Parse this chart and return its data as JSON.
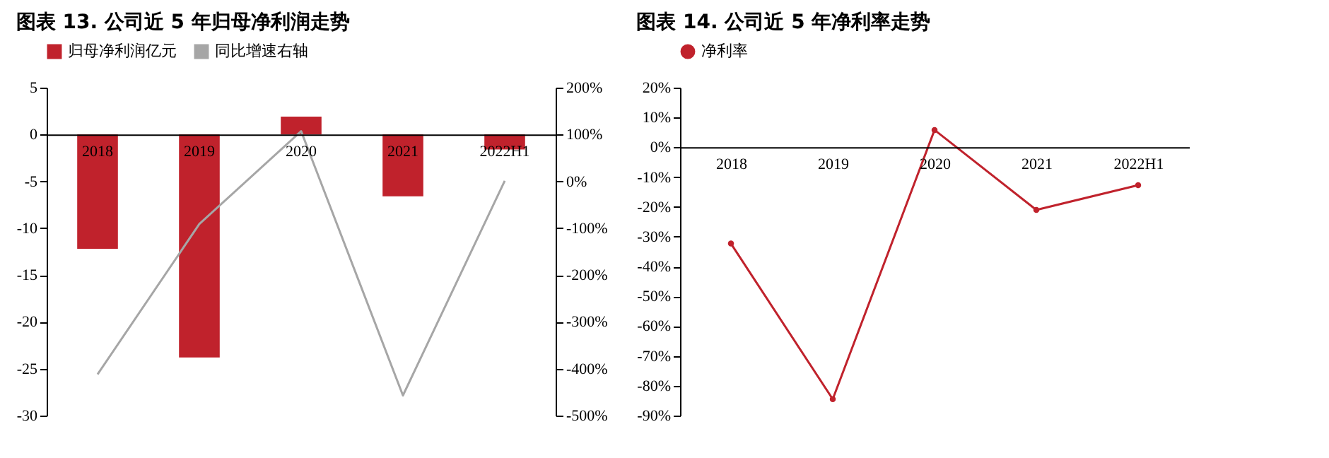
{
  "chart_data": [
    {
      "type": "bar",
      "title": "图表 13. 公司近 5 年归母净利润走势",
      "categories": [
        "2018",
        "2019",
        "2020",
        "2021",
        "2022H1"
      ],
      "series": [
        {
          "name": "归母净利润亿元",
          "color": "#c0222c",
          "values": [
            -12.2,
            -23.8,
            1.9,
            -6.6,
            -1.6
          ]
        },
        {
          "name": "同比增速右轴",
          "type": "line",
          "axis": "y2",
          "color": "#a6a6a6",
          "values": [
            -412,
            -91,
            107,
            -457,
            1
          ]
        }
      ],
      "ylim": [
        -30,
        5
      ],
      "yticks": [
        -30,
        -25,
        -20,
        -15,
        -10,
        -5,
        0,
        5
      ],
      "y2lim": [
        -500,
        200
      ],
      "y2ticks": [
        {
          "value": -500,
          "label": "-500%"
        },
        {
          "value": -400,
          "label": "-400%"
        },
        {
          "value": -300,
          "label": "-300%"
        },
        {
          "value": -200,
          "label": "-200%"
        },
        {
          "value": -100,
          "label": "-100%"
        },
        {
          "value": 0,
          "label": "0%"
        },
        {
          "value": 100,
          "label": "100%"
        },
        {
          "value": 200,
          "label": "200%"
        }
      ],
      "legend": "top"
    },
    {
      "type": "line",
      "title": "图表 14. 公司近 5 年净利率走势",
      "categories": [
        "2018",
        "2019",
        "2020",
        "2021",
        "2022H1"
      ],
      "series": [
        {
          "name": "净利率",
          "color": "#c0222c",
          "values": [
            -32.3,
            -84.5,
            5.8,
            -21,
            -12.7
          ]
        }
      ],
      "ylim": [
        -90,
        20
      ],
      "yticks": [
        {
          "value": -90,
          "label": "-90%"
        },
        {
          "value": -80,
          "label": "-80%"
        },
        {
          "value": -70,
          "label": "-70%"
        },
        {
          "value": -60,
          "label": "-60%"
        },
        {
          "value": -50,
          "label": "-50%"
        },
        {
          "value": -40,
          "label": "-40%"
        },
        {
          "value": -30,
          "label": "-30%"
        },
        {
          "value": -20,
          "label": "-20%"
        },
        {
          "value": -10,
          "label": "-10%"
        },
        {
          "value": 0,
          "label": "0%"
        },
        {
          "value": 10,
          "label": "10%"
        },
        {
          "value": 20,
          "label": "20%"
        }
      ],
      "legend": "top",
      "marker": "circle"
    }
  ]
}
